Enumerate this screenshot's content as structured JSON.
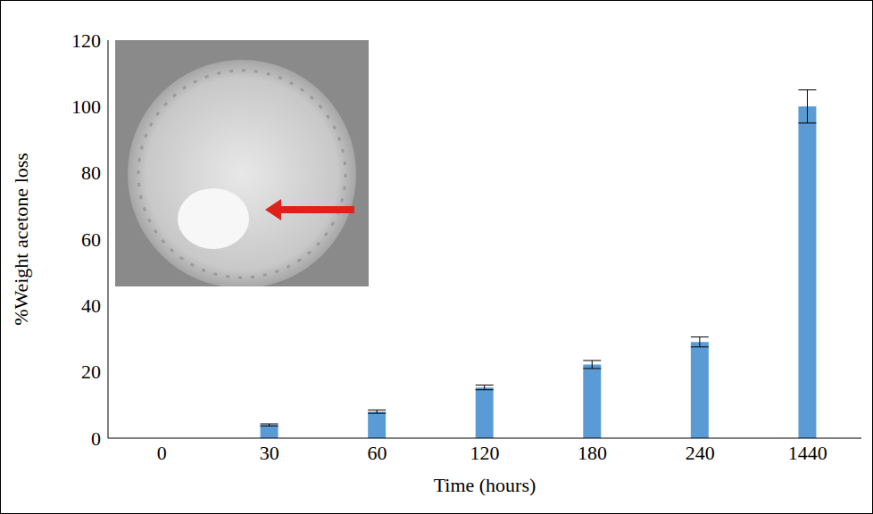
{
  "chart_data": {
    "type": "bar",
    "x_label": "Time (hours)",
    "y_label": "%Weight acetone loss",
    "categories": [
      "0",
      "30",
      "60",
      "120",
      "180",
      "240",
      "1440"
    ],
    "values": [
      0,
      4,
      8,
      15.3,
      22.2,
      29,
      100
    ],
    "errors": [
      0,
      0.3,
      0.5,
      0.7,
      1.2,
      1.5,
      5
    ],
    "color": "#5b9bd5",
    "ylim": [
      0,
      120
    ],
    "yticks": [
      0,
      20,
      40,
      60,
      80,
      100,
      120
    ],
    "grid": false
  }
}
